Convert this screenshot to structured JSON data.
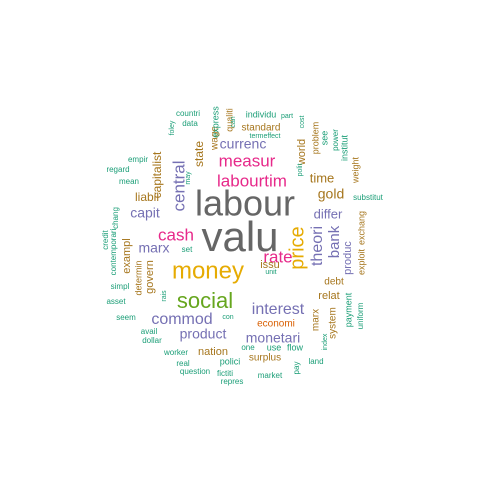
{
  "colors": {
    "teal": "#1B9E77",
    "orange": "#D95F02",
    "purple": "#7570B3",
    "magenta": "#E7298A",
    "green": "#66A61E",
    "gold": "#E6AB02",
    "brown": "#A6761D",
    "gray": "#666666"
  },
  "words": [
    "labour",
    "valu",
    "money",
    "social",
    "price",
    "rate",
    "interest",
    "cash",
    "commod",
    "measur",
    "labourtim",
    "central",
    "theori",
    "monetari",
    "product",
    "bank",
    "currenc",
    "capit",
    "marx",
    "differ",
    "time",
    "gold",
    "capitalist",
    "state",
    "liabil",
    "produc",
    "world",
    "issu",
    "govern",
    "exampl",
    "relat",
    "system",
    "economi",
    "nation",
    "surplus",
    "standard",
    "wage",
    "qualiti",
    "express",
    "data",
    "countri",
    "individu",
    "part",
    "cost",
    "problem",
    "see",
    "power",
    "institut",
    "weight",
    "substitut",
    "exchang",
    "exploit",
    "debt",
    "payment",
    "uniform",
    "marx",
    "flow",
    "use",
    "land",
    "pay",
    "polit",
    "unit",
    "termeffect",
    "can",
    "foley",
    "may",
    "empir",
    "regard",
    "mean",
    "chang",
    "credit",
    "contemporari",
    "simpl",
    "asset",
    "determin",
    "rais",
    "seem",
    "avail",
    "dollar",
    "set",
    "con",
    "one",
    "worker",
    "real",
    "polici",
    "question",
    "fictiti",
    "repres",
    "market",
    "index"
  ]
}
